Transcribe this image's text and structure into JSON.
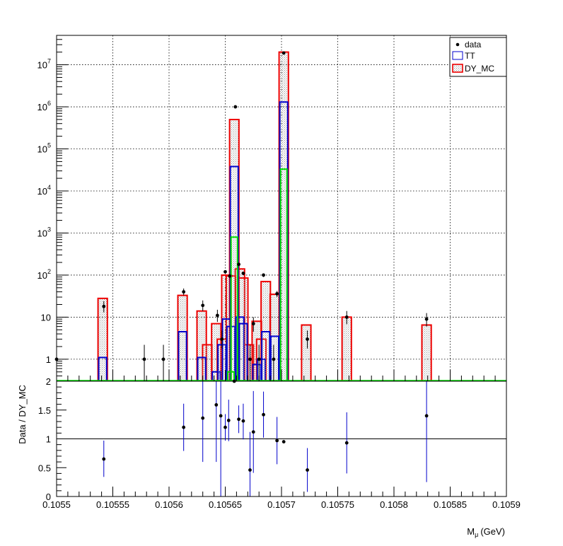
{
  "chart_data": [
    {
      "type": "bar",
      "title": "",
      "xlabel_main": "M",
      "xlabel_sub": "μ",
      "xlabel_unit": "(GeV)",
      "ylabel": "",
      "yscale": "log",
      "xlim": [
        0.1055,
        0.1059
      ],
      "ylim": [
        0.3,
        50000000
      ],
      "grid": true,
      "y_ticks": [
        {
          "value": 1,
          "base": "1",
          "exp": ""
        },
        {
          "value": 10,
          "base": "10",
          "exp": ""
        },
        {
          "value": 100,
          "base": "10",
          "exp": "2"
        },
        {
          "value": 1000,
          "base": "10",
          "exp": "3"
        },
        {
          "value": 10000,
          "base": "10",
          "exp": "4"
        },
        {
          "value": 100000,
          "base": "10",
          "exp": "5"
        },
        {
          "value": 1000000,
          "base": "10",
          "exp": "6"
        },
        {
          "value": 10000000,
          "base": "10",
          "exp": "7"
        }
      ],
      "legend": {
        "placement": "top-right",
        "entries": [
          {
            "label": "data",
            "style": "marker",
            "color": "#000000"
          },
          {
            "label": "TT",
            "style": "box",
            "color": "#0000cc"
          },
          {
            "label": "DY_MC",
            "style": "hatched",
            "color": "#ee0000"
          }
        ]
      },
      "colors": {
        "dy": "#ee0000",
        "tt": "#0000cc",
        "green": "#00dd00",
        "data": "#000000",
        "hatch": "#999999"
      },
      "bin_width": 8.3e-06,
      "series": [
        {
          "name": "DY_MC",
          "bins": [
            {
              "x": 0.105541,
              "y": 28
            },
            {
              "x": 0.105612,
              "y": 33
            },
            {
              "x": 0.105629,
              "y": 14
            },
            {
              "x": 0.105634,
              "y": 2.2
            },
            {
              "x": 0.105642,
              "y": 7
            },
            {
              "x": 0.105647,
              "y": 3
            },
            {
              "x": 0.105651,
              "y": 100
            },
            {
              "x": 0.105655,
              "y": 95
            },
            {
              "x": 0.105658,
              "y": 500000
            },
            {
              "x": 0.105663,
              "y": 140
            },
            {
              "x": 0.105666,
              "y": 85
            },
            {
              "x": 0.105671,
              "y": 2.2
            },
            {
              "x": 0.105678,
              "y": 8
            },
            {
              "x": 0.105682,
              "y": 3
            },
            {
              "x": 0.105686,
              "y": 70
            },
            {
              "x": 0.105694,
              "y": 35
            },
            {
              "x": 0.105702,
              "y": 20000000
            },
            {
              "x": 0.105722,
              "y": 6.5
            },
            {
              "x": 0.105758,
              "y": 10
            },
            {
              "x": 0.105829,
              "y": 6.5
            }
          ]
        },
        {
          "name": "TT",
          "bins": [
            {
              "x": 0.105541,
              "y": 1.1
            },
            {
              "x": 0.105612,
              "y": 4.5
            },
            {
              "x": 0.105629,
              "y": 1.1
            },
            {
              "x": 0.105642,
              "y": 0.5
            },
            {
              "x": 0.105647,
              "y": 2.2
            },
            {
              "x": 0.105651,
              "y": 9
            },
            {
              "x": 0.105655,
              "y": 6
            },
            {
              "x": 0.105658,
              "y": 38000
            },
            {
              "x": 0.105663,
              "y": 10
            },
            {
              "x": 0.105666,
              "y": 7
            },
            {
              "x": 0.105678,
              "y": 0.75
            },
            {
              "x": 0.105682,
              "y": 1
            },
            {
              "x": 0.105686,
              "y": 4.5
            },
            {
              "x": 0.105694,
              "y": 3.5
            },
            {
              "x": 0.105702,
              "y": 1300000
            }
          ]
        },
        {
          "name": "",
          "bins": [
            {
              "x": 0.105655,
              "y": 0.5
            },
            {
              "x": 0.105658,
              "y": 800
            },
            {
              "x": 0.105702,
              "y": 33000
            }
          ]
        },
        {
          "name": "data",
          "points": [
            {
              "x": 0.1055,
              "y": 1,
              "lo": 0.3,
              "hi": 2.2
            },
            {
              "x": 0.105542,
              "y": 18,
              "lo": 13,
              "hi": 24
            },
            {
              "x": 0.105578,
              "y": 1,
              "lo": 0.3,
              "hi": 2.2
            },
            {
              "x": 0.105595,
              "y": 1,
              "lo": 0.3,
              "hi": 2.2
            },
            {
              "x": 0.105613,
              "y": 40,
              "lo": 33,
              "hi": 48
            },
            {
              "x": 0.10563,
              "y": 19,
              "lo": 14,
              "hi": 25
            },
            {
              "x": 0.105643,
              "y": 11,
              "lo": 7.7,
              "hi": 15
            },
            {
              "x": 0.105647,
              "y": 3,
              "lo": 1.8,
              "hi": 4.8
            },
            {
              "x": 0.10565,
              "y": 120,
              "lo": 109,
              "hi": 131
            },
            {
              "x": 0.105654,
              "y": 95,
              "lo": 85,
              "hi": 105
            },
            {
              "x": 0.105659,
              "y": 1000000,
              "lo": 998000,
              "hi": 1002000
            },
            {
              "x": 0.105662,
              "y": 180,
              "lo": 167,
              "hi": 193
            },
            {
              "x": 0.105666,
              "y": 110,
              "lo": 100,
              "hi": 120
            },
            {
              "x": 0.105672,
              "y": 1,
              "lo": 0.3,
              "hi": 2.2
            },
            {
              "x": 0.105675,
              "y": 7,
              "lo": 4.5,
              "hi": 10
            },
            {
              "x": 0.10568,
              "y": 1,
              "lo": 0.3,
              "hi": 2.2
            },
            {
              "x": 0.105684,
              "y": 100,
              "lo": 90,
              "hi": 110
            },
            {
              "x": 0.105693,
              "y": 1,
              "lo": 0.3,
              "hi": 2.2
            },
            {
              "x": 0.105696,
              "y": 36,
              "lo": 30,
              "hi": 42
            },
            {
              "x": 0.105702,
              "y": 19000000,
              "lo": 18990000,
              "hi": 19010000
            },
            {
              "x": 0.105723,
              "y": 3,
              "lo": 1.8,
              "hi": 4.8
            },
            {
              "x": 0.105758,
              "y": 10,
              "lo": 6.8,
              "hi": 14
            },
            {
              "x": 0.105829,
              "y": 9,
              "lo": 6,
              "hi": 12.5
            }
          ]
        }
      ]
    },
    {
      "type": "scatter",
      "ylabel": "Data / DY_MC",
      "xlim": [
        0.1055,
        0.1059
      ],
      "ylim": [
        0,
        2
      ],
      "reference_line": 1,
      "y_ticks": [
        "0",
        "0.5",
        "1",
        "1.5",
        "2"
      ],
      "x_ticks": [
        "0.1055",
        "0.10555",
        "0.1056",
        "0.10565",
        "0.1057",
        "0.10575",
        "0.1058",
        "0.10585",
        "0.1059"
      ],
      "points": [
        {
          "x": 0.105542,
          "y": 0.65,
          "lo": 0.34,
          "hi": 0.97
        },
        {
          "x": 0.105613,
          "y": 1.2,
          "lo": 0.79,
          "hi": 1.61
        },
        {
          "x": 0.10563,
          "y": 1.36,
          "lo": 0.6,
          "hi": 2.0
        },
        {
          "x": 0.105642,
          "y": 1.59,
          "lo": 0.6,
          "hi": 2.0
        },
        {
          "x": 0.105646,
          "y": 1.4,
          "lo": 0.0,
          "hi": 2.0
        },
        {
          "x": 0.10565,
          "y": 1.2,
          "lo": 0.97,
          "hi": 1.43
        },
        {
          "x": 0.105653,
          "y": 1.32,
          "lo": 0.96,
          "hi": 1.68
        },
        {
          "x": 0.105658,
          "y": 2.0,
          "lo": 2.0,
          "hi": 2.0
        },
        {
          "x": 0.105662,
          "y": 1.34,
          "lo": 1.1,
          "hi": 1.58
        },
        {
          "x": 0.105666,
          "y": 1.31,
          "lo": 0.99,
          "hi": 1.61
        },
        {
          "x": 0.105672,
          "y": 0.46,
          "lo": 0.0,
          "hi": 1.12
        },
        {
          "x": 0.105675,
          "y": 1.12,
          "lo": 0.41,
          "hi": 1.83
        },
        {
          "x": 0.105684,
          "y": 1.42,
          "lo": 1.02,
          "hi": 1.82
        },
        {
          "x": 0.105696,
          "y": 0.97,
          "lo": 0.56,
          "hi": 1.38
        },
        {
          "x": 0.105702,
          "y": 0.95,
          "lo": 0.94,
          "hi": 0.96
        },
        {
          "x": 0.105723,
          "y": 0.46,
          "lo": 0.08,
          "hi": 0.84
        },
        {
          "x": 0.105758,
          "y": 0.93,
          "lo": 0.4,
          "hi": 1.46
        },
        {
          "x": 0.105829,
          "y": 1.4,
          "lo": 0.25,
          "hi": 2.0
        }
      ]
    }
  ]
}
